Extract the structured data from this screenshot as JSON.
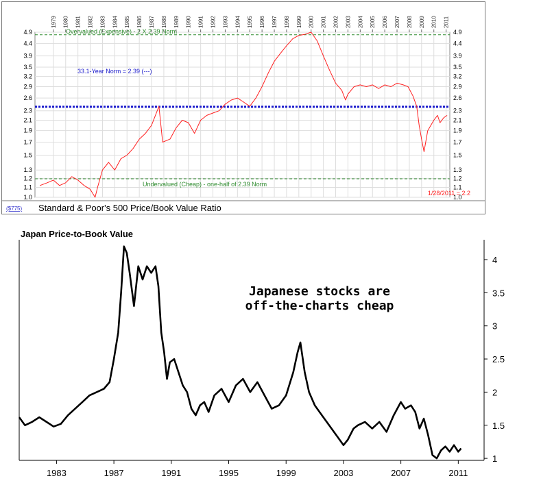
{
  "chart_data": [
    {
      "type": "line",
      "title": "Standard & Poor's 500 Price/Book Value Ratio",
      "symbol_link": "($775)",
      "x_tick_labels": [
        "1979",
        "1980",
        "1981",
        "1982",
        "1983",
        "1984",
        "1985",
        "1986",
        "1987",
        "1988",
        "1989",
        "1990",
        "1991",
        "1992",
        "1993",
        "1994",
        "1995",
        "1996",
        "1997",
        "1998",
        "1999",
        "2000",
        "2001",
        "2002",
        "2003",
        "2004",
        "2005",
        "2006",
        "2007",
        "2008",
        "2009",
        "2010",
        "2011"
      ],
      "y_tick_labels": [
        "1.0",
        "1.1",
        "1.2",
        "1.3",
        "1.5",
        "1.7",
        "1.9",
        "2.1",
        "2.3",
        "2.6",
        "2.9",
        "3.2",
        "3.5",
        "3.9",
        "4.4",
        "4.9"
      ],
      "ylim": [
        1.0,
        4.9
      ],
      "y_scale": "log",
      "xlim": [
        1977.5,
        2011.3
      ],
      "grid": true,
      "reference_lines": [
        {
          "name": "overvalued",
          "value": 4.78,
          "color": "#2e8b2e",
          "label": "Overvalued (Expensive) - 2 X 2.39 Norm"
        },
        {
          "name": "norm",
          "value": 2.39,
          "color": "#1a1acc",
          "label": "33.1-Year Norm = 2.39 (---)"
        },
        {
          "name": "undervalued",
          "value": 1.195,
          "color": "#2e8b2e",
          "label": "Undervalued (Cheap) - one-half of 2.39 Norm"
        }
      ],
      "last_value_label": "1/28/2011 = 2.2",
      "series": [
        {
          "name": "S&P 500 P/B",
          "color": "#ff2020",
          "x": [
            1977.9,
            1978.5,
            1979.0,
            1979.5,
            1980.0,
            1980.5,
            1981.0,
            1981.5,
            1982.0,
            1982.4,
            1982.6,
            1983.0,
            1983.5,
            1984.0,
            1984.5,
            1985.0,
            1985.5,
            1986.0,
            1986.5,
            1987.0,
            1987.6,
            1987.9,
            1988.5,
            1989.0,
            1989.5,
            1990.0,
            1990.5,
            1991.0,
            1991.5,
            1992.0,
            1992.5,
            1993.0,
            1993.5,
            1994.0,
            1994.5,
            1995.0,
            1995.5,
            1996.0,
            1996.5,
            1997.0,
            1997.5,
            1998.0,
            1998.5,
            1999.0,
            1999.5,
            2000.0,
            2000.5,
            2001.0,
            2001.5,
            2002.0,
            2002.5,
            2002.8,
            2003.0,
            2003.5,
            2004.0,
            2004.5,
            2005.0,
            2005.5,
            2006.0,
            2006.5,
            2007.0,
            2007.5,
            2007.9,
            2008.3,
            2008.6,
            2008.8,
            2009.0,
            2009.2,
            2009.5,
            2010.0,
            2010.3,
            2010.5,
            2010.8,
            2011.08
          ],
          "y": [
            1.12,
            1.15,
            1.18,
            1.12,
            1.15,
            1.22,
            1.18,
            1.12,
            1.08,
            1.0,
            1.1,
            1.3,
            1.4,
            1.3,
            1.45,
            1.5,
            1.6,
            1.75,
            1.85,
            2.0,
            2.4,
            1.7,
            1.75,
            1.95,
            2.1,
            2.05,
            1.85,
            2.1,
            2.2,
            2.25,
            2.3,
            2.45,
            2.55,
            2.6,
            2.5,
            2.4,
            2.6,
            2.9,
            3.3,
            3.7,
            4.0,
            4.3,
            4.6,
            4.75,
            4.8,
            4.9,
            4.5,
            3.9,
            3.4,
            3.0,
            2.8,
            2.55,
            2.7,
            2.9,
            2.95,
            2.9,
            2.95,
            2.85,
            2.95,
            2.9,
            3.0,
            2.95,
            2.9,
            2.65,
            2.4,
            2.0,
            1.75,
            1.55,
            1.9,
            2.1,
            2.2,
            2.05,
            2.15,
            2.2
          ]
        }
      ]
    },
    {
      "type": "line",
      "title": "Japan Price-to-Book Value",
      "annotation": "Japanese stocks are\noff-the-charts cheap",
      "annotation_lines": [
        "Japanese stocks are",
        "off-the-charts cheap"
      ],
      "x_tick_labels": [
        "1983",
        "1987",
        "1991",
        "1995",
        "1999",
        "2003",
        "2007",
        "2011"
      ],
      "x_tick_values": [
        1983,
        1987,
        1991,
        1995,
        1999,
        2003,
        2007,
        2011
      ],
      "y_tick_labels": [
        "1",
        "1.5",
        "2",
        "2.5",
        "3",
        "3.5",
        "4"
      ],
      "y_tick_values": [
        1,
        1.5,
        2,
        2.5,
        3,
        3.5,
        4
      ],
      "ylim": [
        0.97,
        4.3
      ],
      "xlim": [
        1980.4,
        2012.8
      ],
      "grid": false,
      "series": [
        {
          "name": "Japan P/B",
          "color": "#000000",
          "x": [
            1980.4,
            1980.8,
            1981.3,
            1981.8,
            1982.3,
            1982.8,
            1983.3,
            1983.8,
            1984.3,
            1984.8,
            1985.3,
            1985.8,
            1986.3,
            1986.7,
            1987.0,
            1987.3,
            1987.5,
            1987.7,
            1987.9,
            1988.1,
            1988.4,
            1988.7,
            1989.0,
            1989.3,
            1989.6,
            1989.9,
            1990.1,
            1990.3,
            1990.5,
            1990.7,
            1990.9,
            1991.2,
            1991.5,
            1991.8,
            1992.1,
            1992.4,
            1992.7,
            1993.0,
            1993.3,
            1993.6,
            1994.0,
            1994.5,
            1995.0,
            1995.5,
            1996.0,
            1996.5,
            1997.0,
            1997.5,
            1998.0,
            1998.5,
            1999.0,
            1999.5,
            1999.8,
            2000.0,
            2000.3,
            2000.6,
            2001.0,
            2001.5,
            2002.0,
            2002.5,
            2003.0,
            2003.3,
            2003.7,
            2004.0,
            2004.5,
            2005.0,
            2005.5,
            2006.0,
            2006.5,
            2007.0,
            2007.3,
            2007.7,
            2008.0,
            2008.3,
            2008.6,
            2008.9,
            2009.2,
            2009.5,
            2009.8,
            2010.1,
            2010.4,
            2010.7,
            2011.0,
            2011.2
          ],
          "y": [
            1.62,
            1.5,
            1.55,
            1.62,
            1.55,
            1.48,
            1.52,
            1.65,
            1.75,
            1.85,
            1.95,
            2.0,
            2.05,
            2.15,
            2.5,
            2.9,
            3.5,
            4.2,
            4.1,
            3.8,
            3.3,
            3.9,
            3.7,
            3.9,
            3.8,
            3.9,
            3.6,
            2.9,
            2.6,
            2.2,
            2.45,
            2.5,
            2.3,
            2.1,
            2.0,
            1.75,
            1.65,
            1.8,
            1.85,
            1.7,
            1.95,
            2.05,
            1.85,
            2.1,
            2.2,
            2.0,
            2.15,
            1.95,
            1.75,
            1.8,
            1.95,
            2.3,
            2.6,
            2.75,
            2.3,
            2.0,
            1.8,
            1.65,
            1.5,
            1.35,
            1.2,
            1.28,
            1.45,
            1.5,
            1.55,
            1.45,
            1.55,
            1.4,
            1.65,
            1.85,
            1.75,
            1.8,
            1.7,
            1.45,
            1.6,
            1.35,
            1.05,
            1.0,
            1.12,
            1.18,
            1.1,
            1.2,
            1.1,
            1.15
          ]
        }
      ]
    }
  ]
}
